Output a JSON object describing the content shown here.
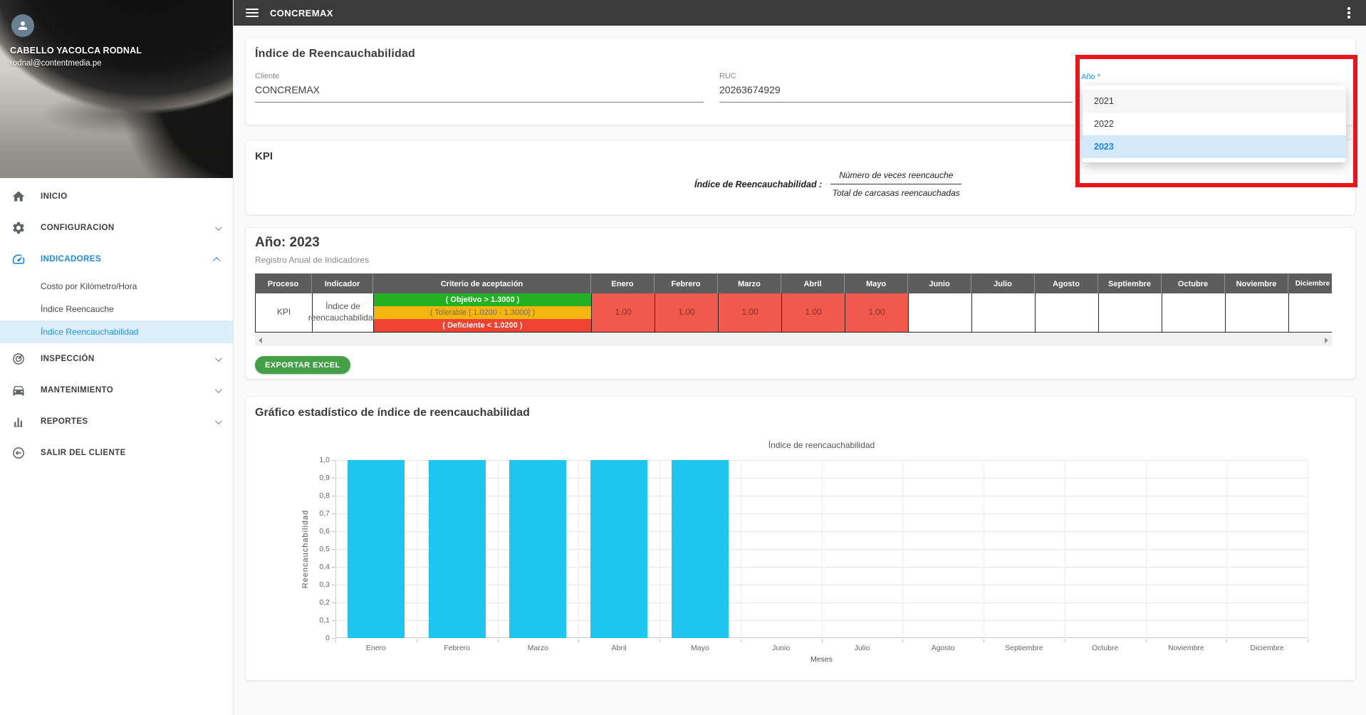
{
  "topbar": {
    "title": "CONCREMAX"
  },
  "sidebar": {
    "user": {
      "name": "CABELLO YACOLCA RODNAL",
      "email": "rodnal@contentmedia.pe"
    },
    "items": [
      {
        "label": "INICIO",
        "icon": "home-icon"
      },
      {
        "label": "CONFIGURACION",
        "icon": "gear-icon",
        "chevron": "down"
      },
      {
        "label": "INDICADORES",
        "icon": "speedometer-icon",
        "chevron": "up",
        "active": true,
        "children": [
          {
            "label": "Costo por Kilómetro/Hora"
          },
          {
            "label": "Índice Reencauche"
          },
          {
            "label": "Índice Reencauchabilidad",
            "active": true
          }
        ]
      },
      {
        "label": "INSPECCIÓN",
        "icon": "target-icon",
        "chevron": "down"
      },
      {
        "label": "MANTENIMIENTO",
        "icon": "car-icon",
        "chevron": "down"
      },
      {
        "label": "REPORTES",
        "icon": "bar-chart-icon",
        "chevron": "down"
      },
      {
        "label": "SALIR DEL CLIENTE",
        "icon": "exit-icon"
      }
    ]
  },
  "form": {
    "title": "Índice de Reencauchabilidad",
    "cliente": {
      "label": "Cliente",
      "value": "CONCREMAX"
    },
    "ruc": {
      "label": "RUC",
      "value": "20263674929"
    },
    "anio": {
      "label": "Año *",
      "options": [
        "2021",
        "2022",
        "2023"
      ],
      "selected": "2023"
    }
  },
  "kpi": {
    "title": "KPI",
    "formula_label": "Índice de Reencauchabilidad :",
    "numerator": "Número de veces reencauche",
    "denominator": "Total de carcasas reencauchadas"
  },
  "registro": {
    "title": "Año: 2023",
    "subtitle": "Registro Anual de Indicadores",
    "export_label": "EXPORTAR EXCEL",
    "table": {
      "headers": [
        "Proceso",
        "Indicador",
        "Criterio de aceptación",
        "Enero",
        "Febrero",
        "Marzo",
        "Abril",
        "Mayo",
        "Junio",
        "Julio",
        "Agosto",
        "Septiembre",
        "Octubre",
        "Noviembre",
        "Diciembre"
      ],
      "row": {
        "proceso": "KPI",
        "indicador": "Índice de reencauchabilidad",
        "criteria": [
          {
            "text": "( Objetivo > 1.3000 )",
            "color": "#23b223"
          },
          {
            "text": "( Tolerable [ 1.0200 - 1.3000] )",
            "color": "#f5b50f"
          },
          {
            "text": "( Deficiente < 1.0200 )",
            "color": "#ee4331"
          }
        ],
        "values": [
          "1.00",
          "1.00",
          "1.00",
          "1.00",
          "1.00",
          "",
          "",
          "",
          "",
          "",
          "",
          ""
        ]
      }
    }
  },
  "chart_section": {
    "title": "Gráfico estadístico de índice de reencauchabilidad"
  },
  "chart_data": {
    "type": "bar",
    "title": "Índice de reencauchabilidad",
    "categories": [
      "Enero",
      "Febrero",
      "Marzo",
      "Abril",
      "Mayo",
      "Junio",
      "Julio",
      "Agosto",
      "Septiembre",
      "Octubre",
      "Noviembre",
      "Diciembre"
    ],
    "values": [
      1.0,
      1.0,
      1.0,
      1.0,
      1.0,
      0,
      0,
      0,
      0,
      0,
      0,
      0
    ],
    "xlabel": "Meses",
    "ylabel": "Reencauchabilidad",
    "ylim": [
      0,
      1.0
    ],
    "ytick_labels": [
      "0",
      "0,1",
      "0,2",
      "0,3",
      "0,4",
      "0,5",
      "0,6",
      "0,7",
      "0,8",
      "0,9",
      "1,0"
    ],
    "bar_color": "#1fc7f0",
    "grid": true,
    "legend": false
  },
  "colors": {
    "accent_blue": "#1e88e5",
    "topbar": "#3b3b3b",
    "export_green": "#43a047",
    "month_cell_red": "#f1594c",
    "annotation_red": "#e9151b",
    "table_header": "#5d5d5d",
    "active_item_bg": "#ddeefb"
  }
}
